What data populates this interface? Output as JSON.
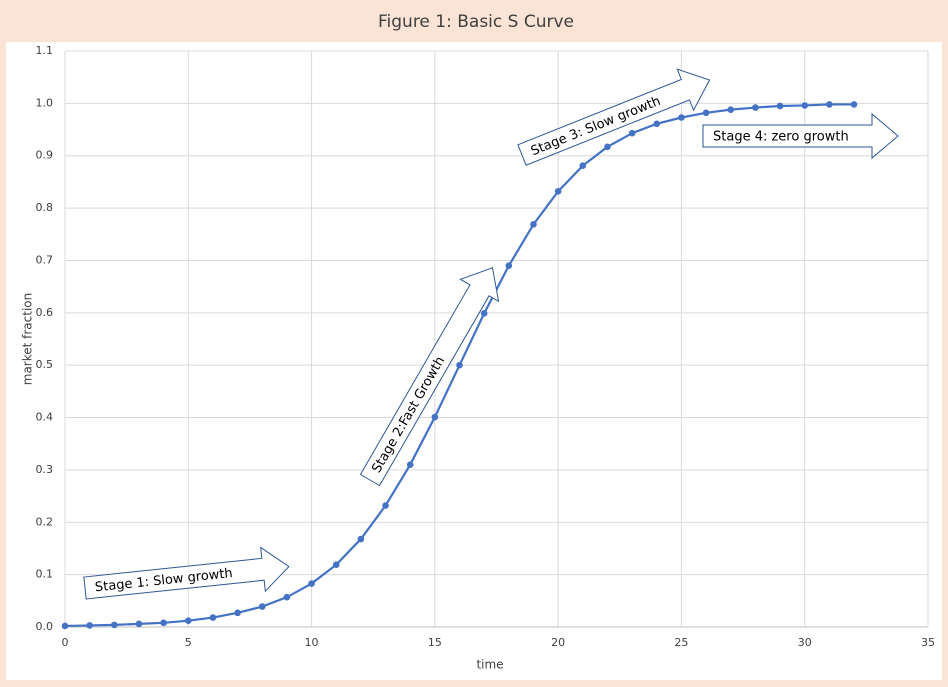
{
  "chart_data": {
    "type": "line",
    "title": "Figure 1: Basic S Curve",
    "x_label": "time",
    "y_label": "market fraction",
    "x": [
      0,
      1,
      2,
      3,
      4,
      5,
      6,
      7,
      8,
      9,
      10,
      11,
      12,
      13,
      14,
      15,
      16,
      17,
      18,
      19,
      20,
      21,
      22,
      23,
      24,
      25,
      26,
      27,
      28,
      29,
      30,
      31,
      32
    ],
    "series": [
      {
        "name": "market fraction",
        "color": "#4472c4",
        "values": [
          0.002,
          0.003,
          0.004,
          0.006,
          0.008,
          0.012,
          0.018,
          0.027,
          0.039,
          0.057,
          0.083,
          0.119,
          0.168,
          0.232,
          0.31,
          0.401,
          0.5,
          0.599,
          0.69,
          0.769,
          0.832,
          0.881,
          0.917,
          0.943,
          0.961,
          0.973,
          0.982,
          0.988,
          0.992,
          0.995,
          0.996,
          0.998,
          0.998
        ]
      }
    ],
    "xlim": [
      0,
      35
    ],
    "xticks": [
      0,
      5,
      10,
      15,
      20,
      25,
      30,
      35
    ],
    "ylim": [
      0,
      1.1
    ],
    "yticks": [
      {
        "value": 0,
        "label": "0.0"
      },
      0.1,
      0.2,
      0.3,
      0.4,
      0.5,
      0.6,
      0.7,
      0.8,
      0.9,
      {
        "value": 1,
        "label": "1.0"
      },
      1.1
    ],
    "grid": true,
    "annotations": [
      "Stage 1: Slow growth",
      "Stage 2:Fast Growth",
      "Stage 3: Slow growth",
      "Stage 4: zero growth"
    ]
  }
}
